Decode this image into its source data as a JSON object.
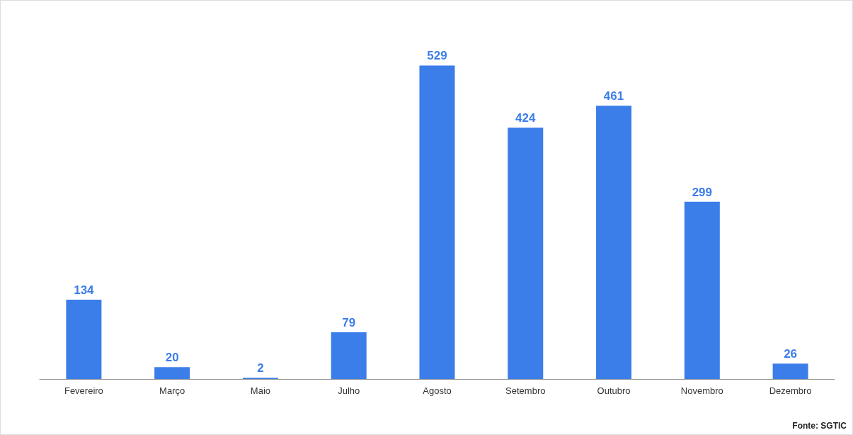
{
  "chart_data": {
    "type": "bar",
    "categories": [
      "Fevereiro",
      "Março",
      "Maio",
      "Julho",
      "Agosto",
      "Setembro",
      "Outubro",
      "Novembro",
      "Dezembro"
    ],
    "values": [
      134,
      20,
      2,
      79,
      529,
      424,
      461,
      299,
      26
    ],
    "color": "#3b7de9",
    "data_labels": true,
    "annotations": [
      "Fonte: SGTIC"
    ]
  }
}
